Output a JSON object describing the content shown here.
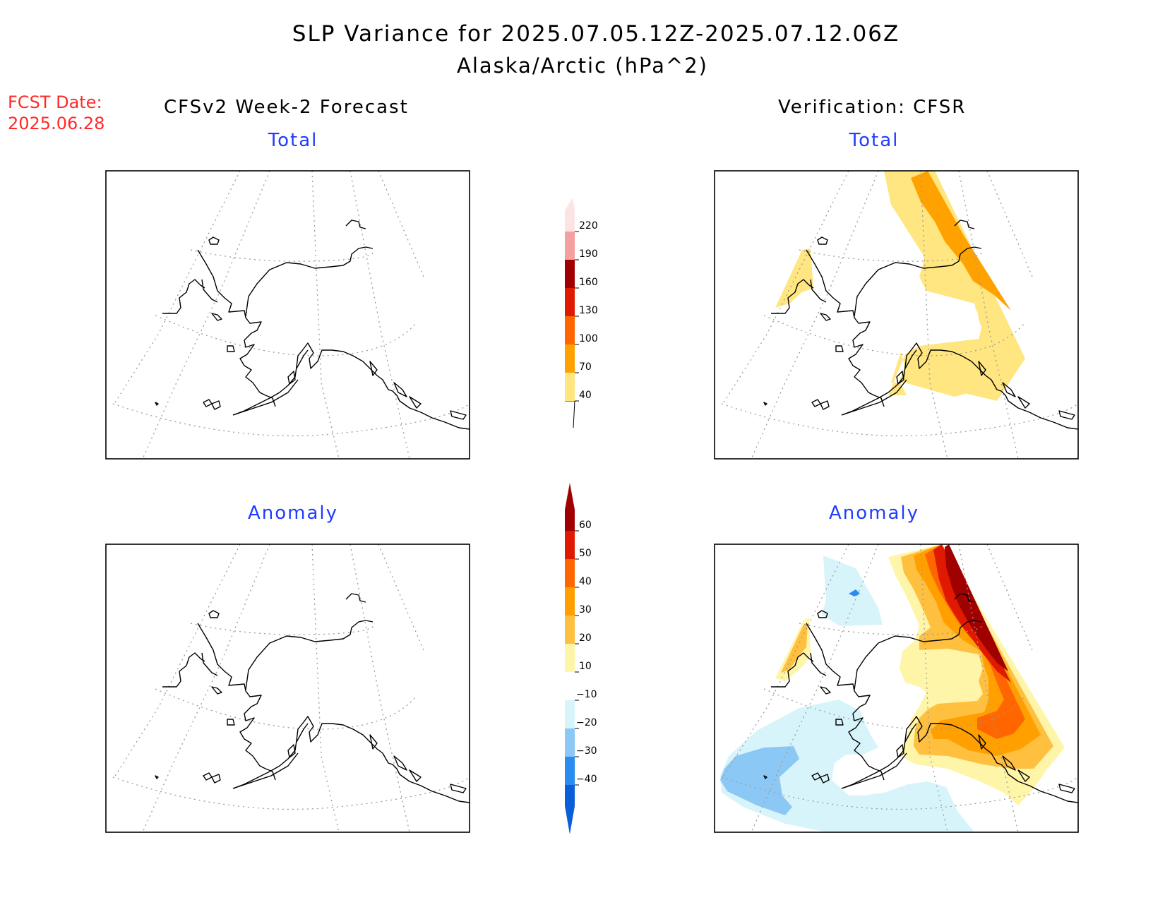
{
  "header": {
    "title": "SLP Variance for 2025.07.05.12Z-2025.07.12.06Z",
    "subtitle": "Alaska/Arctic (hPa^2)",
    "fcst_date_label": "FCST Date:",
    "fcst_date_value": "2025.06.28"
  },
  "columns": {
    "left": "CFSv2 Week-2 Forecast",
    "right": "Verification: CFSR"
  },
  "panels": {
    "top_left": "Total",
    "top_right": "Total",
    "bottom_left": "Anomaly",
    "bottom_right": "Anomaly"
  },
  "colorbars": {
    "total": {
      "levels": [
        "40",
        "70",
        "100",
        "130",
        "160",
        "190",
        "220"
      ],
      "colors": [
        "#ffe680",
        "#ffa200",
        "#ff6600",
        "#e01a00",
        "#a00000",
        "#f4a0a0",
        "#fde4e4"
      ]
    },
    "anomaly": {
      "levels": [
        "-40",
        "-30",
        "-20",
        "-10",
        "10",
        "20",
        "30",
        "40",
        "50",
        "60"
      ],
      "colors": [
        "#0a5fd8",
        "#2a8cf0",
        "#8cc8f5",
        "#d8f4fb",
        "#ffffff",
        "#fff5a8",
        "#ffc040",
        "#ffa000",
        "#ff6600",
        "#e01a00",
        "#a00000"
      ]
    }
  }
}
